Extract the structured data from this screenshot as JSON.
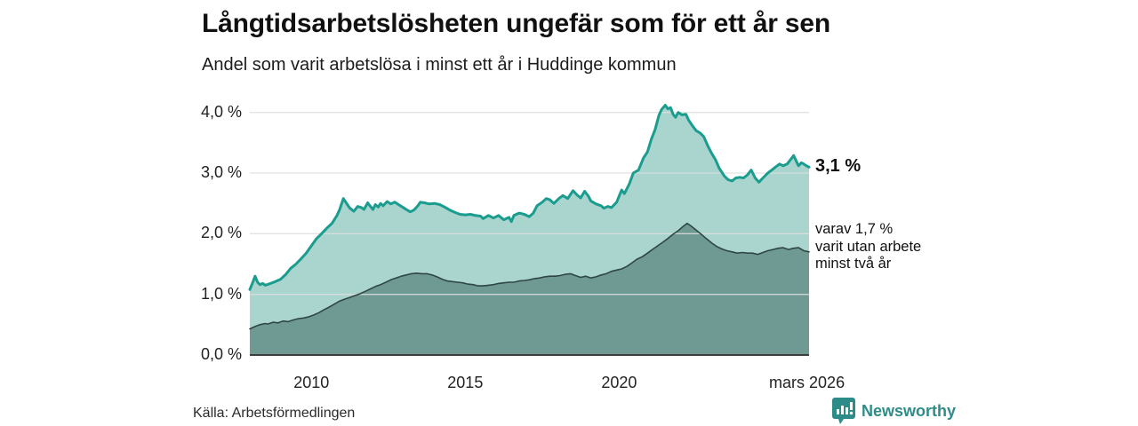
{
  "header": {
    "title": "Långtidsarbetslösheten ungefär som för ett år sen",
    "subtitle": "Andel som varit arbetslösa i minst ett år i Huddinge kommun"
  },
  "chart_data": {
    "type": "area",
    "title": "Långtidsarbetslösheten ungefär som för ett år sen",
    "subtitle": "Andel som varit arbetslösa i minst ett år i Huddinge kommun",
    "xlabel": "",
    "ylabel": "",
    "xlim": [
      2008.0,
      2026.17
    ],
    "ylim": [
      0,
      4.2
    ],
    "grid": true,
    "legend_position": "none",
    "yticks": [
      {
        "value": 0.0,
        "label": "0,0 %"
      },
      {
        "value": 1.0,
        "label": "1,0 %"
      },
      {
        "value": 2.0,
        "label": "2,0 %"
      },
      {
        "value": 3.0,
        "label": "3,0 %"
      },
      {
        "value": 4.0,
        "label": "4,0 %"
      }
    ],
    "xticks": [
      {
        "value": 2010,
        "label": "2010"
      },
      {
        "value": 2015,
        "label": "2015"
      },
      {
        "value": 2020,
        "label": "2020"
      },
      {
        "value": 2026.1,
        "label": "mars 2026"
      }
    ],
    "series": [
      {
        "name": "Andel arbetslösa minst ett år",
        "latest_value": 3.1,
        "line_color": "#1a9c8e",
        "fill_color": "#a9d5ce",
        "line_width": 3,
        "points": [
          [
            2008.0,
            1.08
          ],
          [
            2008.08,
            1.18
          ],
          [
            2008.17,
            1.3
          ],
          [
            2008.25,
            1.2
          ],
          [
            2008.33,
            1.16
          ],
          [
            2008.42,
            1.18
          ],
          [
            2008.5,
            1.15
          ],
          [
            2008.67,
            1.18
          ],
          [
            2008.83,
            1.21
          ],
          [
            2009.0,
            1.25
          ],
          [
            2009.17,
            1.33
          ],
          [
            2009.33,
            1.43
          ],
          [
            2009.5,
            1.5
          ],
          [
            2009.67,
            1.59
          ],
          [
            2009.83,
            1.68
          ],
          [
            2010.0,
            1.8
          ],
          [
            2010.17,
            1.92
          ],
          [
            2010.33,
            2.0
          ],
          [
            2010.5,
            2.09
          ],
          [
            2010.67,
            2.17
          ],
          [
            2010.83,
            2.3
          ],
          [
            2010.92,
            2.4
          ],
          [
            2011.04,
            2.58
          ],
          [
            2011.17,
            2.48
          ],
          [
            2011.25,
            2.42
          ],
          [
            2011.38,
            2.37
          ],
          [
            2011.5,
            2.45
          ],
          [
            2011.63,
            2.43
          ],
          [
            2011.71,
            2.4
          ],
          [
            2011.83,
            2.51
          ],
          [
            2011.92,
            2.45
          ],
          [
            2012.0,
            2.4
          ],
          [
            2012.08,
            2.48
          ],
          [
            2012.17,
            2.44
          ],
          [
            2012.25,
            2.5
          ],
          [
            2012.33,
            2.46
          ],
          [
            2012.46,
            2.53
          ],
          [
            2012.58,
            2.49
          ],
          [
            2012.71,
            2.52
          ],
          [
            2012.83,
            2.48
          ],
          [
            2012.96,
            2.44
          ],
          [
            2013.08,
            2.4
          ],
          [
            2013.21,
            2.36
          ],
          [
            2013.33,
            2.39
          ],
          [
            2013.46,
            2.46
          ],
          [
            2013.54,
            2.52
          ],
          [
            2013.67,
            2.51
          ],
          [
            2013.83,
            2.49
          ],
          [
            2014.0,
            2.5
          ],
          [
            2014.17,
            2.48
          ],
          [
            2014.33,
            2.44
          ],
          [
            2014.5,
            2.39
          ],
          [
            2014.67,
            2.35
          ],
          [
            2014.83,
            2.32
          ],
          [
            2015.0,
            2.31
          ],
          [
            2015.17,
            2.32
          ],
          [
            2015.33,
            2.3
          ],
          [
            2015.5,
            2.29
          ],
          [
            2015.58,
            2.25
          ],
          [
            2015.75,
            2.3
          ],
          [
            2015.92,
            2.26
          ],
          [
            2016.08,
            2.3
          ],
          [
            2016.25,
            2.23
          ],
          [
            2016.42,
            2.27
          ],
          [
            2016.5,
            2.2
          ],
          [
            2016.58,
            2.3
          ],
          [
            2016.75,
            2.34
          ],
          [
            2016.92,
            2.32
          ],
          [
            2017.08,
            2.28
          ],
          [
            2017.21,
            2.34
          ],
          [
            2017.33,
            2.46
          ],
          [
            2017.5,
            2.52
          ],
          [
            2017.63,
            2.58
          ],
          [
            2017.75,
            2.56
          ],
          [
            2017.88,
            2.5
          ],
          [
            2018.04,
            2.58
          ],
          [
            2018.17,
            2.63
          ],
          [
            2018.33,
            2.58
          ],
          [
            2018.5,
            2.71
          ],
          [
            2018.63,
            2.64
          ],
          [
            2018.75,
            2.59
          ],
          [
            2018.88,
            2.7
          ],
          [
            2019.0,
            2.62
          ],
          [
            2019.08,
            2.54
          ],
          [
            2019.25,
            2.49
          ],
          [
            2019.42,
            2.46
          ],
          [
            2019.5,
            2.42
          ],
          [
            2019.63,
            2.45
          ],
          [
            2019.75,
            2.43
          ],
          [
            2019.92,
            2.52
          ],
          [
            2020.08,
            2.72
          ],
          [
            2020.17,
            2.66
          ],
          [
            2020.33,
            2.82
          ],
          [
            2020.46,
            3.0
          ],
          [
            2020.63,
            3.05
          ],
          [
            2020.79,
            3.25
          ],
          [
            2020.92,
            3.35
          ],
          [
            2021.04,
            3.55
          ],
          [
            2021.17,
            3.72
          ],
          [
            2021.29,
            3.95
          ],
          [
            2021.38,
            4.05
          ],
          [
            2021.5,
            4.12
          ],
          [
            2021.58,
            4.06
          ],
          [
            2021.67,
            4.08
          ],
          [
            2021.75,
            3.97
          ],
          [
            2021.83,
            3.92
          ],
          [
            2021.92,
            4.0
          ],
          [
            2022.04,
            3.96
          ],
          [
            2022.17,
            3.97
          ],
          [
            2022.25,
            3.88
          ],
          [
            2022.38,
            3.78
          ],
          [
            2022.5,
            3.7
          ],
          [
            2022.63,
            3.66
          ],
          [
            2022.75,
            3.6
          ],
          [
            2022.88,
            3.45
          ],
          [
            2023.0,
            3.33
          ],
          [
            2023.13,
            3.22
          ],
          [
            2023.25,
            3.08
          ],
          [
            2023.42,
            2.95
          ],
          [
            2023.54,
            2.89
          ],
          [
            2023.67,
            2.87
          ],
          [
            2023.79,
            2.92
          ],
          [
            2023.92,
            2.93
          ],
          [
            2024.04,
            2.92
          ],
          [
            2024.17,
            2.97
          ],
          [
            2024.29,
            3.05
          ],
          [
            2024.42,
            2.92
          ],
          [
            2024.54,
            2.85
          ],
          [
            2024.67,
            2.92
          ],
          [
            2024.83,
            3.0
          ],
          [
            2024.96,
            3.05
          ],
          [
            2025.08,
            3.1
          ],
          [
            2025.21,
            3.15
          ],
          [
            2025.33,
            3.12
          ],
          [
            2025.46,
            3.15
          ],
          [
            2025.58,
            3.23
          ],
          [
            2025.67,
            3.29
          ],
          [
            2025.75,
            3.2
          ],
          [
            2025.83,
            3.12
          ],
          [
            2025.92,
            3.17
          ],
          [
            2026.0,
            3.15
          ],
          [
            2026.08,
            3.12
          ],
          [
            2026.17,
            3.1
          ]
        ]
      },
      {
        "name": "varav utan arbete minst två år",
        "latest_value": 1.7,
        "line_color": "#2e4742",
        "fill_color": "#6f9a94",
        "line_width": 1.6,
        "points": [
          [
            2008.0,
            0.43
          ],
          [
            2008.17,
            0.47
          ],
          [
            2008.33,
            0.5
          ],
          [
            2008.5,
            0.52
          ],
          [
            2008.58,
            0.51
          ],
          [
            2008.75,
            0.54
          ],
          [
            2008.92,
            0.53
          ],
          [
            2009.08,
            0.56
          ],
          [
            2009.25,
            0.55
          ],
          [
            2009.42,
            0.58
          ],
          [
            2009.58,
            0.6
          ],
          [
            2009.75,
            0.61
          ],
          [
            2009.92,
            0.63
          ],
          [
            2010.08,
            0.66
          ],
          [
            2010.25,
            0.7
          ],
          [
            2010.42,
            0.75
          ],
          [
            2010.58,
            0.79
          ],
          [
            2010.75,
            0.84
          ],
          [
            2010.92,
            0.89
          ],
          [
            2011.08,
            0.92
          ],
          [
            2011.25,
            0.95
          ],
          [
            2011.42,
            0.98
          ],
          [
            2011.58,
            1.01
          ],
          [
            2011.75,
            1.05
          ],
          [
            2011.92,
            1.09
          ],
          [
            2012.08,
            1.13
          ],
          [
            2012.25,
            1.16
          ],
          [
            2012.42,
            1.2
          ],
          [
            2012.58,
            1.24
          ],
          [
            2012.75,
            1.27
          ],
          [
            2012.92,
            1.3
          ],
          [
            2013.08,
            1.32
          ],
          [
            2013.25,
            1.34
          ],
          [
            2013.42,
            1.35
          ],
          [
            2013.58,
            1.34
          ],
          [
            2013.75,
            1.34
          ],
          [
            2013.92,
            1.32
          ],
          [
            2014.08,
            1.29
          ],
          [
            2014.25,
            1.25
          ],
          [
            2014.42,
            1.22
          ],
          [
            2014.58,
            1.21
          ],
          [
            2014.75,
            1.2
          ],
          [
            2014.92,
            1.19
          ],
          [
            2015.08,
            1.17
          ],
          [
            2015.25,
            1.16
          ],
          [
            2015.42,
            1.14
          ],
          [
            2015.58,
            1.14
          ],
          [
            2015.75,
            1.15
          ],
          [
            2015.92,
            1.16
          ],
          [
            2016.08,
            1.18
          ],
          [
            2016.25,
            1.19
          ],
          [
            2016.42,
            1.2
          ],
          [
            2016.58,
            1.2
          ],
          [
            2016.75,
            1.22
          ],
          [
            2016.92,
            1.23
          ],
          [
            2017.08,
            1.24
          ],
          [
            2017.25,
            1.26
          ],
          [
            2017.42,
            1.27
          ],
          [
            2017.58,
            1.29
          ],
          [
            2017.75,
            1.3
          ],
          [
            2017.92,
            1.3
          ],
          [
            2018.08,
            1.31
          ],
          [
            2018.25,
            1.33
          ],
          [
            2018.42,
            1.34
          ],
          [
            2018.58,
            1.31
          ],
          [
            2018.75,
            1.28
          ],
          [
            2018.92,
            1.3
          ],
          [
            2019.08,
            1.27
          ],
          [
            2019.25,
            1.29
          ],
          [
            2019.42,
            1.32
          ],
          [
            2019.58,
            1.34
          ],
          [
            2019.75,
            1.38
          ],
          [
            2019.92,
            1.4
          ],
          [
            2020.08,
            1.42
          ],
          [
            2020.25,
            1.46
          ],
          [
            2020.42,
            1.52
          ],
          [
            2020.58,
            1.58
          ],
          [
            2020.75,
            1.62
          ],
          [
            2020.92,
            1.68
          ],
          [
            2021.08,
            1.74
          ],
          [
            2021.25,
            1.8
          ],
          [
            2021.42,
            1.86
          ],
          [
            2021.58,
            1.92
          ],
          [
            2021.75,
            1.99
          ],
          [
            2021.92,
            2.05
          ],
          [
            2022.08,
            2.12
          ],
          [
            2022.21,
            2.17
          ],
          [
            2022.33,
            2.13
          ],
          [
            2022.5,
            2.06
          ],
          [
            2022.67,
            1.99
          ],
          [
            2022.83,
            1.92
          ],
          [
            2023.0,
            1.85
          ],
          [
            2023.17,
            1.79
          ],
          [
            2023.33,
            1.75
          ],
          [
            2023.5,
            1.72
          ],
          [
            2023.67,
            1.7
          ],
          [
            2023.83,
            1.68
          ],
          [
            2024.0,
            1.69
          ],
          [
            2024.17,
            1.68
          ],
          [
            2024.33,
            1.68
          ],
          [
            2024.5,
            1.66
          ],
          [
            2024.67,
            1.69
          ],
          [
            2024.83,
            1.72
          ],
          [
            2025.0,
            1.74
          ],
          [
            2025.17,
            1.76
          ],
          [
            2025.33,
            1.77
          ],
          [
            2025.5,
            1.74
          ],
          [
            2025.67,
            1.76
          ],
          [
            2025.83,
            1.77
          ],
          [
            2026.0,
            1.72
          ],
          [
            2026.17,
            1.7
          ]
        ]
      }
    ],
    "annotations": {
      "latest_total": "3,1 %",
      "secondary_line1": "varav 1,7 %",
      "secondary_line2": "varit utan arbete",
      "secondary_line3": "minst två år"
    }
  },
  "footer": {
    "source": "Källa: Arbetsförmedlingen",
    "brand": "Newsworthy"
  },
  "colors": {
    "accent_teal": "#1a9c8e",
    "fill_light": "#a9d5ce",
    "fill_dark": "#6f9a94",
    "dark_line": "#2e4742",
    "gridline": "#d9d9d9",
    "baseline": "#3d3d3d",
    "brand_teal": "#2e8c88"
  }
}
